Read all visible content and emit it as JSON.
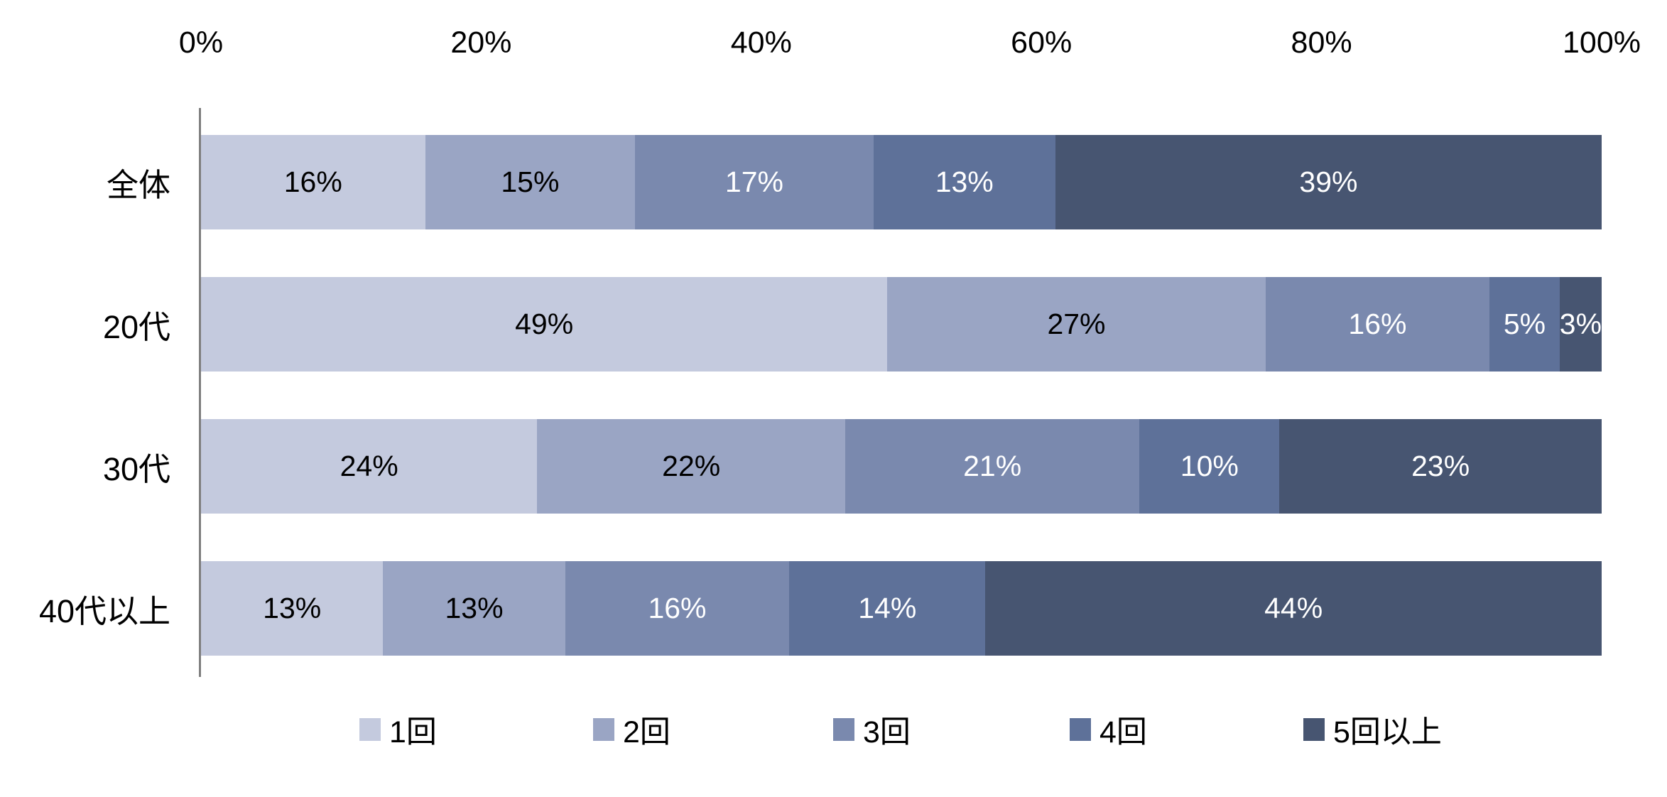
{
  "chart_data": {
    "type": "bar",
    "orientation": "horizontal",
    "stacked": true,
    "title": "",
    "xlabel": "",
    "ylabel": "",
    "xlim": [
      0,
      100
    ],
    "grid": false,
    "value_suffix": "%",
    "x_ticks": [
      "0%",
      "20%",
      "40%",
      "60%",
      "80%",
      "100%"
    ],
    "categories": [
      "全体",
      "20代",
      "30代",
      "40代以上"
    ],
    "series": [
      {
        "name": "1回",
        "color": "#c4cade",
        "label_color": "#000000",
        "values": [
          16,
          49,
          24,
          13
        ]
      },
      {
        "name": "2回",
        "color": "#9aa5c4",
        "label_color": "#000000",
        "values": [
          15,
          27,
          22,
          13
        ]
      },
      {
        "name": "3回",
        "color": "#7a89ae",
        "label_color": "#ffffff",
        "values": [
          17,
          16,
          21,
          16
        ]
      },
      {
        "name": "4回",
        "color": "#5e7199",
        "label_color": "#ffffff",
        "values": [
          13,
          5,
          10,
          14
        ]
      },
      {
        "name": "5回以上",
        "color": "#475571",
        "label_color": "#ffffff",
        "values": [
          39,
          3,
          23,
          44
        ]
      }
    ],
    "legend_position": "bottom",
    "legend_labels": [
      "1回",
      "2回",
      "3回",
      "4回",
      "5回以上"
    ],
    "axis_line_color": "#7f7f7f"
  }
}
